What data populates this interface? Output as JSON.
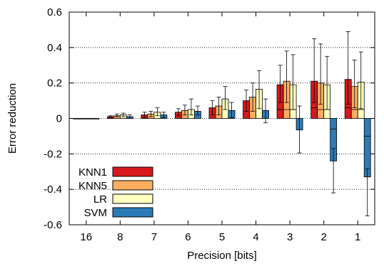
{
  "chart_data": {
    "type": "bar",
    "xlabel": "Precision [bits]",
    "ylabel": "Error reduction",
    "ylim": [
      -0.6,
      0.6
    ],
    "yticks": [
      -0.6,
      -0.4,
      -0.2,
      0,
      0.2,
      0.4,
      0.6
    ],
    "ytick_labels": [
      "-0.6",
      "-0.4",
      "-0.2",
      "0",
      "0.2",
      "0.4",
      "0.6"
    ],
    "grid": "horizontal dotted",
    "legend_position": "bottom-left",
    "categories": [
      "16",
      "8",
      "7",
      "6",
      "5",
      "4",
      "3",
      "2",
      "1"
    ],
    "series": [
      {
        "name": "KNN1",
        "color": "#d7191c",
        "values": [
          0.0,
          0.01,
          0.02,
          0.035,
          0.06,
          0.1,
          0.19,
          0.21,
          0.22
        ],
        "err_low": [
          0.0,
          0.005,
          0.015,
          0.02,
          0.04,
          0.06,
          0.1,
          0.12,
          0.14
        ],
        "err_high": [
          0.0,
          0.005,
          0.015,
          0.02,
          0.04,
          0.06,
          0.11,
          0.24,
          0.27
        ],
        "inner_marks": [
          null,
          null,
          null,
          null,
          null,
          null,
          0.05,
          0.06,
          0.06
        ]
      },
      {
        "name": "KNN5",
        "color": "#fdae61",
        "values": [
          0.0,
          0.015,
          0.025,
          0.045,
          0.07,
          0.12,
          0.21,
          0.2,
          0.18
        ],
        "err_low": [
          0.0,
          0.005,
          0.015,
          0.025,
          0.05,
          0.08,
          0.12,
          0.12,
          0.12
        ],
        "err_high": [
          0.0,
          0.01,
          0.015,
          0.03,
          0.05,
          0.08,
          0.17,
          0.22,
          0.15
        ],
        "inner_marks": [
          null,
          null,
          null,
          null,
          null,
          null,
          0.05,
          0.05,
          0.05
        ]
      },
      {
        "name": "LR",
        "color": "#ffffbf",
        "values": [
          0.0,
          0.02,
          0.035,
          0.05,
          0.11,
          0.165,
          0.19,
          0.19,
          0.205
        ],
        "err_low": [
          0.0,
          0.01,
          0.02,
          0.03,
          0.06,
          0.11,
          0.14,
          0.14,
          0.15
        ],
        "err_high": [
          0.0,
          0.01,
          0.025,
          0.06,
          0.07,
          0.105,
          0.17,
          0.16,
          0.17
        ],
        "inner_marks": [
          null,
          null,
          null,
          null,
          null,
          null,
          0.05,
          0.05,
          0.05
        ]
      },
      {
        "name": "SVM",
        "color": "#2c7bb6",
        "values": [
          0.0,
          0.01,
          0.02,
          0.04,
          0.045,
          0.045,
          -0.065,
          -0.24,
          -0.33
        ],
        "err_low": [
          0.0,
          0.01,
          0.015,
          0.02,
          0.04,
          0.07,
          0.13,
          0.18,
          0.22
        ],
        "err_high": [
          0.0,
          0.01,
          0.015,
          0.03,
          0.045,
          0.065,
          0.135,
          0.07,
          0.045
        ],
        "inner_marks": [
          null,
          null,
          null,
          null,
          null,
          null,
          null,
          -0.06,
          -0.1
        ]
      }
    ]
  }
}
